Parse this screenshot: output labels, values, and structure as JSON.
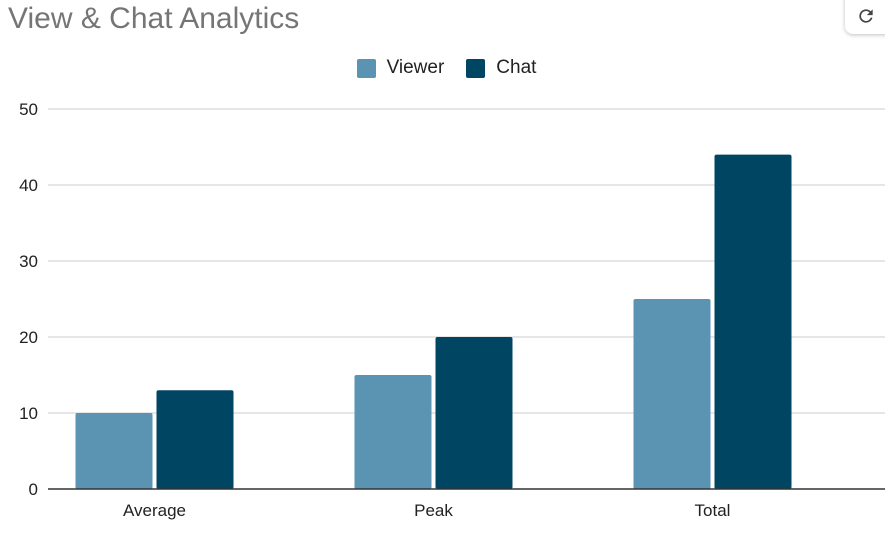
{
  "title": "View & Chat Analytics",
  "icons": {
    "refresh": "refresh-icon"
  },
  "colors": {
    "viewer": "#5b93b3",
    "chat": "#004561",
    "grid": "#cccccc",
    "axis": "#333333",
    "title": "#757575"
  },
  "legend": [
    {
      "label": "Viewer",
      "color": "#5b93b3"
    },
    {
      "label": "Chat",
      "color": "#004561"
    }
  ],
  "chart_data": {
    "type": "bar",
    "categories": [
      "Average",
      "Peak",
      "Total"
    ],
    "series": [
      {
        "name": "Viewer",
        "values": [
          10,
          15,
          25
        ],
        "color": "#5b93b3"
      },
      {
        "name": "Chat",
        "values": [
          13,
          20,
          44
        ],
        "color": "#004561"
      }
    ],
    "title": "View & Chat Analytics",
    "xlabel": "",
    "ylabel": "",
    "ylim": [
      0,
      50
    ],
    "yticks": [
      "0",
      "10",
      "20",
      "30",
      "40",
      "50"
    ],
    "grid": true,
    "legend_position": "top"
  }
}
